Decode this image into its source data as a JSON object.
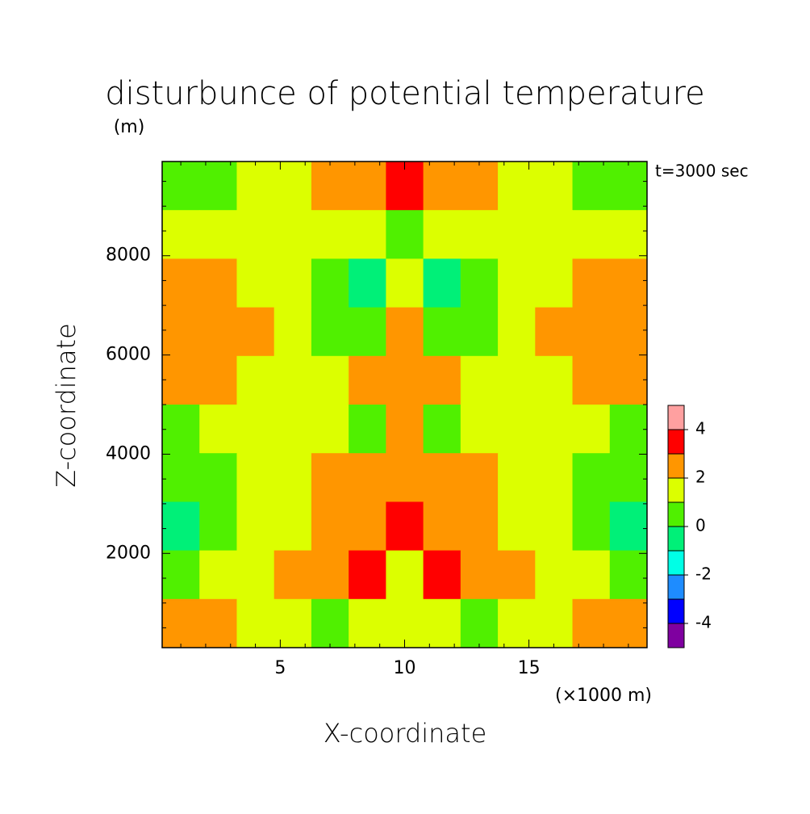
{
  "chart_data": {
    "type": "contour",
    "title": "disturbunce of potential temperature",
    "y_unit_label": "(m)",
    "annotation": "t=3000 sec",
    "xlabel": "X-coordinate",
    "x_unit_label": "(×1000 m)",
    "ylabel": "Z-coordinate",
    "xlim": [
      0.25,
      19.75
    ],
    "ylim": [
      100,
      9900
    ],
    "xticks": [
      5,
      10,
      15
    ],
    "yticks": [
      2000,
      4000,
      6000,
      8000
    ],
    "xminorticks": [
      1,
      2,
      3,
      4,
      6,
      7,
      8,
      9,
      11,
      12,
      13,
      14,
      16,
      17,
      18,
      19
    ],
    "yminorticks": [
      500,
      1000,
      1500,
      2500,
      3000,
      3500,
      4500,
      5000,
      5500,
      6500,
      7000,
      7500,
      8500,
      9000,
      9500
    ],
    "z": [
      [
        0.5,
        0.5,
        1.5,
        1.5,
        2.5,
        2.5,
        3.5,
        2.5,
        2.5,
        1.5,
        1.5,
        0.5,
        0.5
      ],
      [
        1.5,
        1.5,
        1.5,
        1.5,
        1.5,
        1.5,
        0.5,
        1.5,
        1.5,
        1.5,
        1.5,
        1.5,
        1.5
      ],
      [
        2.5,
        2.5,
        1.5,
        1.5,
        0.5,
        -0.5,
        1.5,
        -0.5,
        0.5,
        1.5,
        1.5,
        2.5,
        2.5
      ],
      [
        2.5,
        2.5,
        2.5,
        1.5,
        0.5,
        0.5,
        2.5,
        0.5,
        0.5,
        1.5,
        2.5,
        2.5,
        2.5
      ],
      [
        2.5,
        2.5,
        1.5,
        1.5,
        1.5,
        2.5,
        2.5,
        2.5,
        1.5,
        1.5,
        1.5,
        2.5,
        2.5
      ],
      [
        0.5,
        1.5,
        1.5,
        1.5,
        1.5,
        0.5,
        2.5,
        0.5,
        1.5,
        1.5,
        1.5,
        1.5,
        0.5
      ],
      [
        0.5,
        0.5,
        1.5,
        1.5,
        2.5,
        2.5,
        2.5,
        2.5,
        2.5,
        1.5,
        1.5,
        0.5,
        0.5
      ],
      [
        -0.5,
        0.5,
        1.5,
        1.5,
        2.5,
        2.5,
        3.5,
        2.5,
        2.5,
        1.5,
        1.5,
        0.5,
        -0.5
      ],
      [
        0.5,
        1.5,
        1.5,
        2.5,
        2.5,
        3.5,
        1.5,
        3.5,
        2.5,
        2.5,
        1.5,
        1.5,
        0.5
      ],
      [
        2.5,
        2.5,
        1.5,
        1.5,
        0.5,
        1.5,
        1.5,
        1.5,
        0.5,
        1.5,
        1.5,
        2.5,
        2.5
      ]
    ],
    "levels": [
      -5,
      -4,
      -3,
      -2,
      -1,
      0,
      1,
      2,
      3,
      4,
      5
    ],
    "colors": [
      "#7f00a0",
      "#0000ff",
      "#1e8cff",
      "#00ffe6",
      "#00f078",
      "#50f000",
      "#dcff00",
      "#ff9600",
      "#ff0000",
      "#ffa0a0"
    ],
    "colorbar_ticks": [
      -4,
      -2,
      0,
      2,
      4
    ]
  }
}
